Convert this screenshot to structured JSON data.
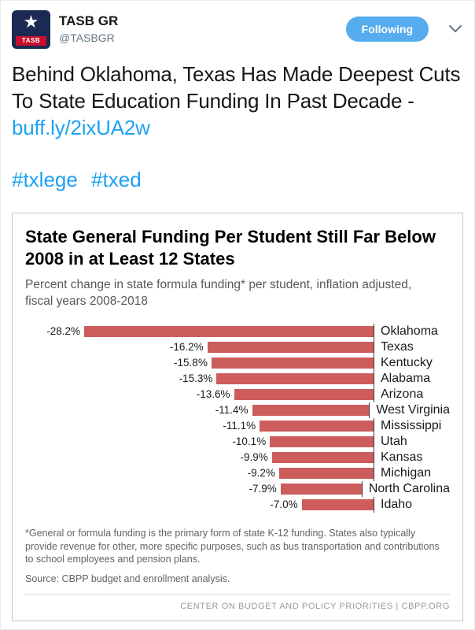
{
  "colors": {
    "link": "#1da1f2",
    "following_bg": "#55acee",
    "bar": "#cd5c5c"
  },
  "tweet": {
    "author": "TASB GR",
    "handle": "@TASBGR",
    "avatar_text": "TASB",
    "following_label": "Following",
    "text_before_link": "Behind Oklahoma, Texas Has Made Deepest Cuts To State Education Funding In Past Decade - ",
    "link": "buff.ly/2ixUA2w",
    "hashtags": [
      "#txlege",
      "#txed"
    ]
  },
  "chart_data": {
    "type": "bar",
    "orientation": "horizontal",
    "title": "State General Funding Per Student Still Far Below 2008 in at Least 12 States",
    "subtitle": "Percent change in state formula funding* per student, inflation adjusted, fiscal years 2008-2018",
    "categories": [
      "Oklahoma",
      "Texas",
      "Kentucky",
      "Alabama",
      "Arizona",
      "West Virginia",
      "Mississippi",
      "Utah",
      "Kansas",
      "Michigan",
      "North Carolina",
      "Idaho"
    ],
    "values": [
      -28.2,
      -16.2,
      -15.8,
      -15.3,
      -13.6,
      -11.4,
      -11.1,
      -10.1,
      -9.9,
      -9.2,
      -7.9,
      -7.0
    ],
    "value_labels": [
      "-28.2%",
      "-16.2%",
      "-15.8%",
      "-15.3%",
      "-13.6%",
      "-11.4%",
      "-11.1%",
      "-10.1%",
      "-9.9%",
      "-9.2%",
      "-7.9%",
      "-7.0%"
    ],
    "xlim": [
      -30,
      0
    ],
    "legend": "none",
    "grid": false,
    "bar_color": "#cd5c5c",
    "footnote": "*General or formula funding is the primary form of state K-12 funding. States also typically provide revenue for other, more specific purposes, such as bus transportation and contributions to school employees and pension plans.",
    "source": "Source: CBPP budget and enrollment analysis.",
    "footer": "CENTER ON BUDGET AND POLICY PRIORITIES | CBPP.ORG"
  }
}
